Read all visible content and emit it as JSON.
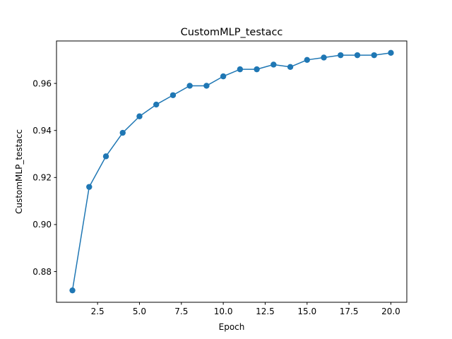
{
  "chart_data": {
    "type": "line",
    "title": "CustomMLP_testacc",
    "xlabel": "Epoch",
    "ylabel": "CustomMLP_testacc",
    "x": [
      1,
      2,
      3,
      4,
      5,
      6,
      7,
      8,
      9,
      10,
      11,
      12,
      13,
      14,
      15,
      16,
      17,
      18,
      19,
      20
    ],
    "series": [
      {
        "values": [
          0.872,
          0.916,
          0.929,
          0.939,
          0.946,
          0.951,
          0.955,
          0.959,
          0.959,
          0.963,
          0.966,
          0.966,
          0.968,
          0.967,
          0.97,
          0.971,
          0.972,
          0.972,
          0.972,
          0.973
        ],
        "color": "#1f77b4",
        "marker": "circle"
      }
    ],
    "xlim": [
      0.05,
      20.95
    ],
    "ylim": [
      0.86695,
      0.97805
    ],
    "x_ticks": [
      "2.5",
      "5.0",
      "7.5",
      "10.0",
      "12.5",
      "15.0",
      "17.5",
      "20.0"
    ],
    "y_ticks": [
      "0.88",
      "0.90",
      "0.92",
      "0.94",
      "0.96"
    ],
    "grid": false,
    "legend": "none"
  }
}
